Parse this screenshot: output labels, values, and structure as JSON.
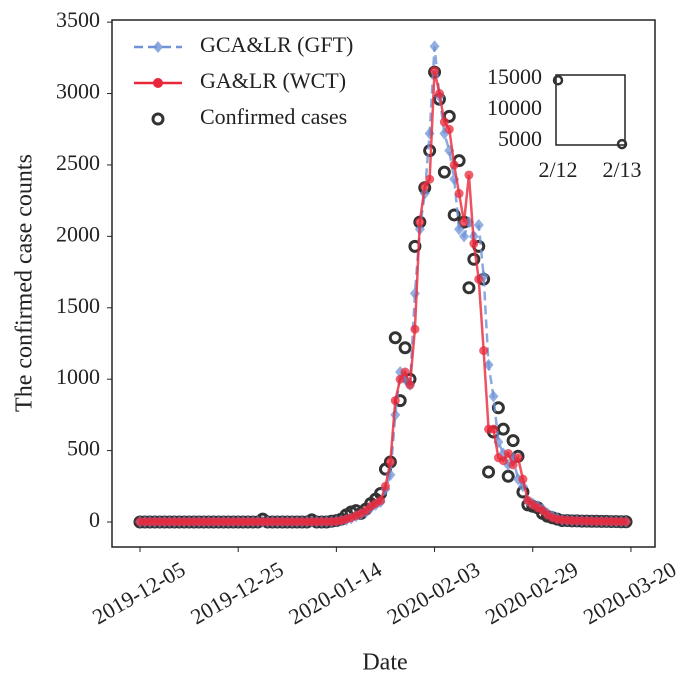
{
  "chart_data": [
    {
      "type": "line",
      "xlabel": "Date",
      "ylabel": "The confirmed case counts",
      "x": [
        0,
        1,
        2,
        3,
        4,
        5,
        6,
        7,
        8,
        9,
        10,
        11,
        12,
        13,
        14,
        15,
        16,
        17,
        18,
        19,
        20,
        21,
        22,
        23,
        24,
        25,
        26,
        27,
        28,
        29,
        30,
        31,
        32,
        33,
        34,
        35,
        36,
        37,
        38,
        39,
        40,
        41,
        42,
        43,
        44,
        45,
        46,
        47,
        48,
        49,
        50,
        51,
        52,
        53,
        54,
        55,
        56,
        57,
        58,
        59,
        60,
        61,
        62,
        63,
        64,
        65,
        66,
        67,
        68,
        69,
        70,
        71,
        72,
        73,
        74,
        75,
        76,
        77,
        78,
        79,
        80,
        81,
        82,
        83,
        84,
        85,
        86,
        87,
        88,
        89,
        90,
        91,
        92,
        93,
        94,
        95,
        96,
        97,
        98,
        99
      ],
      "xlim": [
        -5.7,
        104.9
      ],
      "xticks": [
        {
          "value": 0,
          "label": "2019-12-05"
        },
        {
          "value": 20,
          "label": "2019-12-25"
        },
        {
          "value": 40,
          "label": "2020-01-14"
        },
        {
          "value": 60,
          "label": "2020-02-03"
        },
        {
          "value": 80,
          "label": "2020-02-29"
        },
        {
          "value": 100,
          "label": "2020-03-20"
        }
      ],
      "ylim": [
        -175,
        3515
      ],
      "yticks": [
        0,
        500,
        1000,
        1500,
        2000,
        2500,
        3000,
        3500
      ],
      "legend": "upper left",
      "series": [
        {
          "name": "GCA&LR (GFT)",
          "color": "#6f93d6",
          "marker": "diamond",
          "linestyle": "dashed",
          "values": [
            2,
            2,
            2,
            2,
            2,
            2,
            2,
            2,
            2,
            2,
            2,
            2,
            2,
            2,
            2,
            2,
            2,
            2,
            2,
            2,
            2,
            2,
            2,
            2,
            2,
            2,
            2,
            2,
            2,
            2,
            2,
            2,
            2,
            2,
            2,
            2,
            2,
            2,
            2,
            2,
            5,
            10,
            15,
            25,
            40,
            55,
            70,
            100,
            120,
            140,
            230,
            330,
            750,
            1050,
            1000,
            960,
            1600,
            2050,
            2300,
            2720,
            3330,
            2980,
            2720,
            2600,
            2400,
            2050,
            2000,
            2100,
            2000,
            2080,
            1720,
            1100,
            880,
            560,
            480,
            400,
            450,
            300,
            250,
            150,
            130,
            110,
            90,
            60,
            40,
            25,
            15,
            12,
            10,
            9,
            8,
            7,
            6,
            5,
            5,
            4,
            4,
            3,
            3,
            2
          ]
        },
        {
          "name": "GA&LR (WCT)",
          "color": "#e8283a",
          "marker": "circle",
          "linestyle": "solid",
          "values": [
            2,
            2,
            2,
            2,
            2,
            2,
            2,
            2,
            2,
            2,
            2,
            2,
            2,
            2,
            2,
            2,
            2,
            2,
            2,
            2,
            2,
            2,
            2,
            2,
            2,
            2,
            2,
            2,
            2,
            2,
            2,
            2,
            2,
            2,
            2,
            2,
            2,
            2,
            2,
            2,
            5,
            10,
            20,
            30,
            45,
            60,
            80,
            110,
            130,
            150,
            250,
            420,
            850,
            1000,
            1050,
            960,
            1350,
            2100,
            2350,
            2400,
            3160,
            3000,
            2800,
            2750,
            2500,
            2300,
            2100,
            2430,
            1950,
            1700,
            1200,
            650,
            650,
            450,
            430,
            480,
            400,
            450,
            300,
            150,
            120,
            100,
            80,
            50,
            30,
            20,
            15,
            12,
            10,
            9,
            8,
            7,
            6,
            5,
            5,
            4,
            4,
            3,
            3,
            2
          ]
        },
        {
          "name": "Confirmed cases",
          "color": "#333333",
          "marker": "ring",
          "linestyle": "none",
          "values": [
            0,
            0,
            0,
            0,
            0,
            0,
            0,
            0,
            0,
            0,
            0,
            0,
            0,
            0,
            0,
            0,
            0,
            0,
            0,
            0,
            0,
            0,
            0,
            0,
            0,
            20,
            0,
            0,
            0,
            0,
            0,
            0,
            0,
            0,
            0,
            15,
            0,
            0,
            0,
            5,
            10,
            20,
            50,
            70,
            80,
            60,
            90,
            130,
            160,
            200,
            370,
            420,
            1290,
            850,
            1220,
            1000,
            1930,
            2100,
            2340,
            2600,
            3150,
            2960,
            2450,
            2840,
            2150,
            2530,
            2100,
            1640,
            1840,
            1930,
            1700,
            350,
            630,
            800,
            650,
            320,
            570,
            460,
            210,
            120,
            110,
            100,
            60,
            40,
            30,
            20,
            10,
            10,
            8,
            8,
            6,
            6,
            5,
            5,
            4,
            4,
            3,
            3,
            2,
            2
          ]
        }
      ]
    },
    {
      "type": "scatter",
      "categories": [
        "2/12",
        "2/13"
      ],
      "values": [
        14800,
        4500
      ],
      "color": "#333333",
      "ylim": [
        4350,
        15650
      ],
      "yticks": [
        5000,
        10000,
        15000
      ]
    }
  ]
}
